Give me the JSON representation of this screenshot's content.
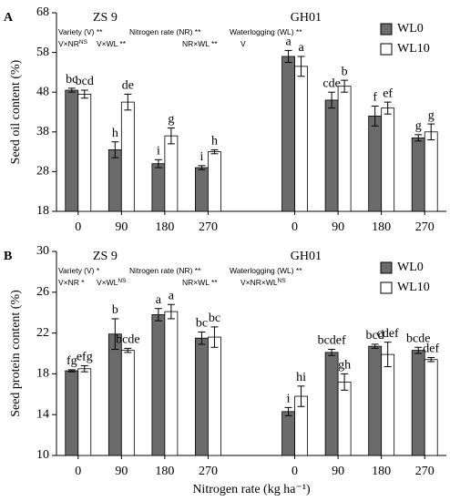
{
  "chart_data": [
    {
      "type": "bar",
      "panel_label": "A",
      "y_label": "Seed oil content (%)",
      "ylim": [
        18,
        68
      ],
      "yticks": [
        18,
        28,
        38,
        48,
        58,
        68
      ],
      "categories": [
        "0",
        "90",
        "180",
        "270",
        "0",
        "90",
        "180",
        "270"
      ],
      "groups": [
        "ZS 9",
        "GH01"
      ],
      "annotations": [
        [
          {
            "text": "Variety (V) **"
          },
          {
            "text": "Nitrogen rate (NR) **"
          },
          {
            "text": "Waterlogging (WL) **"
          }
        ],
        [
          {
            "text": "V×NR",
            "sup": "NS"
          },
          {
            "text": "V×WL **"
          },
          {
            "text": "NR×WL **"
          },
          {
            "text": "V"
          }
        ]
      ],
      "series": [
        {
          "name": "WL0",
          "color": "#6b6b6b",
          "values": [
            48.5,
            33.5,
            30,
            29,
            57,
            46,
            42,
            36.5
          ],
          "errors": [
            0.5,
            2,
            1,
            0.5,
            1.5,
            2,
            2.5,
            0.8
          ],
          "letters": [
            "bc",
            "h",
            "i",
            "i",
            "a",
            "cde",
            "f",
            "g"
          ]
        },
        {
          "name": "WL10",
          "color": "#ffffff",
          "values": [
            47.5,
            45.5,
            37,
            33,
            54.5,
            49.5,
            44,
            38
          ],
          "errors": [
            1,
            2,
            2,
            0.5,
            2.5,
            1.5,
            1.5,
            2
          ],
          "letters": [
            "bcd",
            "de",
            "g",
            "h",
            "a",
            "b",
            "ef",
            "g"
          ]
        }
      ]
    },
    {
      "type": "bar",
      "panel_label": "B",
      "y_label": "Seed protein content (%)",
      "x_label": "Nitrogen rate (kg ha⁻¹)",
      "ylim": [
        10,
        30
      ],
      "yticks": [
        10,
        14,
        18,
        22,
        26,
        30
      ],
      "categories": [
        "0",
        "90",
        "180",
        "270",
        "0",
        "90",
        "180",
        "270"
      ],
      "groups": [
        "ZS 9",
        "GH01"
      ],
      "annotations": [
        [
          {
            "text": "Variety (V) *"
          },
          {
            "text": "Nitrogen rate (NR) **"
          },
          {
            "text": "Waterlogging (WL) **"
          }
        ],
        [
          {
            "text": "V×NR *"
          },
          {
            "text": "V×WL",
            "sup": "NS"
          },
          {
            "text": "NR×WL **"
          },
          {
            "text": "V×NR×WL",
            "sup": "NS"
          }
        ]
      ],
      "series": [
        {
          "name": "WL0",
          "color": "#6b6b6b",
          "values": [
            18.3,
            21.9,
            23.8,
            21.5,
            14.3,
            20.1,
            20.7,
            20.3
          ],
          "errors": [
            0.1,
            1.5,
            0.6,
            0.6,
            0.4,
            0.3,
            0.2,
            0.3
          ],
          "letters": [
            "fg",
            "b",
            "a",
            "bc",
            "i",
            "bcdef",
            "bcd",
            "bcde"
          ]
        },
        {
          "name": "WL10",
          "color": "#ffffff",
          "values": [
            18.5,
            20.3,
            24.1,
            21.6,
            15.8,
            17.2,
            19.9,
            19.4
          ],
          "errors": [
            0.3,
            0.2,
            0.7,
            1,
            1,
            0.8,
            1.2,
            0.2
          ],
          "letters": [
            "efg",
            "bcde",
            "a",
            "bc",
            "hi",
            "gh",
            "cdef",
            "def"
          ]
        }
      ]
    }
  ]
}
